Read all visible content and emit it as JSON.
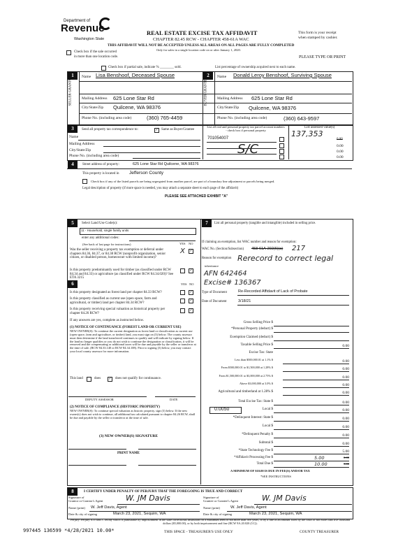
{
  "header": {
    "logo_dept": "Department of",
    "logo_name": "Revenue",
    "logo_state": "Washington State",
    "title": "REAL ESTATE EXCISE TAX AFFIDAVIT",
    "chapter": "CHAPTER 82.45 RCW - CHAPTER 458-61A WAC",
    "warning": "THIS AFFIDAVIT WILL NOT BE ACCEPTED UNLESS ALL AREAS ON ALL PAGES ARE FULLY COMPLETED",
    "only_for": "Only for sales in a single location code on or after January 1, 2020.",
    "receipt_1": "This form is your receipt",
    "receipt_2": "when stamped by cashier.",
    "type_or_print": "PLEASE TYPE OR PRINT",
    "multi_location_1": "Check box if the sale occurred",
    "multi_location_2": "in more than one location code.",
    "partial_sale": "Check box if partial sale, indicate % ________ sold.",
    "ownership_note": "List percentage of ownership acquired next to each name."
  },
  "seller": {
    "num": "1",
    "side": "SELLER GRANTOR",
    "name_label": "Name",
    "name": "Lisa Benshoof, Deceased Spouse",
    "mail_label": "Mailing Address",
    "mail": "625 Lone Star Rd",
    "city_label": "City/State/Zip",
    "city": "Quilcene, WA 98376",
    "phone_label": "Phone No. (including area code)",
    "phone": "(360) 765-4459"
  },
  "buyer": {
    "num": "2",
    "side": "BUYER GRANTEE",
    "name_label": "Name",
    "name": "Donald Leroy Benshoof, Surviving Spouse",
    "mail_label": "Mailing Address",
    "mail": "625 Lone Star Rd",
    "city_label": "City/State/Zip",
    "city": "Quilcene, WA 98376",
    "phone_label": "Phone No. (including area code)",
    "phone": "(360) 643-9597"
  },
  "section3": {
    "num": "3",
    "send_label": "Send all property tax correspondence to:",
    "same_label": "Same as Buyer/Grantee",
    "same_checked": true,
    "name_label": "Name",
    "mail_label": "Mailing Address",
    "city_label": "City/State/Zip",
    "phone_label": "Phone No. (including area code)",
    "parcel_header": "List all real and personal property tax parcel account numbers - check box if personal property",
    "value_header": "List assessed value(s)",
    "parcels": [
      "701054007",
      "",
      "",
      ""
    ],
    "parcel_handwritten": "S/C",
    "assessed_handwritten": "137,353",
    "values": [
      "0.00",
      "0.00",
      "0.00",
      "0.00"
    ]
  },
  "section4": {
    "num": "4",
    "street_label": "Street address of property:",
    "street": "625 Lone Star Rd Quilcene, WA 98376",
    "located_label": "This property is located in",
    "located": "Jefferson County",
    "segregated_label": "Check box if any of the listed parcels are being segregated from another parcel, are part of a boundary line adjustment or parcels being merged.",
    "legal_label": "Legal description of property (if more space is needed, you may attach a separate sheet to each page of the affidavit)",
    "legal": "PLEASE SEE ATTACHED EXHIBIT \"A\""
  },
  "section5": {
    "num": "5",
    "land_use_label": "Select Land Use Code(s):",
    "land_use": "11 - Household, single family units",
    "additional": "enter any additional codes:",
    "see_back": "(See back of last page for instructions)",
    "yes": "YES",
    "no": "NO",
    "q1": "Was the seller receiving a property tax exemption or deferral under chapters 84.36, 84.37, or 84.38 RCW (nonprofit organization, senior citizen, or disabled person, homeowner with limited income)?",
    "q2": "Is this property predominantly used for timber (as classified under RCW 84.34 and 84.33) or agriculture (as classified under RCW 84.34.020)? See ETA 3215"
  },
  "section6": {
    "num": "6",
    "yes": "YES",
    "no": "NO",
    "q1": "Is this property designated as forest land per chapter 84.33 RCW?",
    "q2": "Is this property classified as current use (open space, farm and agricultural, or timber) land per chapter 84.34 RCW?",
    "q3": "Is this property receiving special valuation as historical property per chapter 84.26 RCW?",
    "if_yes": "If any answers are yes, complete as instructed below.",
    "notice1_title": "(1) NOTICE OF CONTINUANCE (FOREST LAND OR CURRENT USE)",
    "notice1_body": "NEW OWNER(S): To continue the current designation as forest land or classification as current use (open space, farm and agriculture, or timber) land, you must sign on (3) below. The county assessor must then determine if the land transferred continues to qualify and will indicate by signing below. If the land no longer qualifies or you do not wish to continue the designation or classification, it will be removed and the compensating or additional taxes will be due and payable by the seller or transferor at the time of sale. (RCW 84.33.140 or RCW 84.34.108). Prior to signing (3) below, you may contact your local county assessor for more information.",
    "this_land": "This land",
    "does": "does",
    "does_not": "does not qualify for continuance.",
    "deputy": "DEPUTY ASSESSOR",
    "date": "DATE",
    "notice2_title": "(2) NOTICE OF COMPLIANCE (HISTORIC PROPERTY)",
    "notice2_body": "NEW OWNER(S): To continue special valuation as historic property, sign (3) below. If the new owner(s) does not wish to continue, all additional tax calculated pursuant to chapter 84.26 RCW, shall be due and payable by the seller or transferor at the time of sale.",
    "new_owner_sig": "(3) NEW OWNER(S) SIGNATURE",
    "print_name": "PRINT NAME"
  },
  "section7": {
    "num": "7",
    "personal_label": "List all personal property (tangible and intangible) included in selling price.",
    "exemption_intro": "If claiming an exemption, list WAC number and reason for exemption:",
    "wac_label": "WAC No. (Section/Subsection)",
    "wac": "458-61A-202(6)(a)",
    "wac_handwritten": "217",
    "reason_label": "Reason for exemption",
    "reason_typed": "inheritance",
    "reason_handwritten": "Rerecord to correct legal",
    "afn_handwritten": "AFN 642464",
    "excise_handwritten": "Excise# 136367",
    "doc_type_label": "Type of Document",
    "doc_type": "Re-Recorded Affidavit of Lack of Probate",
    "doc_date_label": "Date of Document",
    "doc_date": "3/18/21",
    "local_rate": "0.0050",
    "fin": [
      {
        "label": "Gross Selling Price  $",
        "value": ""
      },
      {
        "label": "*Personal Property (deduct)  $",
        "value": ""
      },
      {
        "label": "Exemption Claimed (deduct)  $",
        "value": ""
      },
      {
        "label": "Taxable Selling Price  $",
        "value": "0.00"
      },
      {
        "label": "Excise Tax: State",
        "value": null
      },
      {
        "label": "Less than $500,000.01 at 1.1%  $",
        "value": "0.00"
      },
      {
        "label": "From $500,000.01 to $1,500,000 at 1.28%  $",
        "value": "0.00"
      },
      {
        "label": "From $1,500,000.01 to $3,000,000 at 2.75%  $",
        "value": "0.00"
      },
      {
        "label": "Above $3,000,000 at 3.0%  $",
        "value": "0.00"
      },
      {
        "label": "Agricultural and timberland at 1.28%  $",
        "value": "0.00"
      },
      {
        "label": "Total Excise Tax: State  $",
        "value": "0.00"
      },
      {
        "label": "Local  $",
        "value": "0.00"
      },
      {
        "label": "*Delinquent Interest: State  $",
        "value": "0.00"
      },
      {
        "label": "Local  $",
        "value": "0.00"
      },
      {
        "label": "*Delinquent Penalty  $",
        "value": "0.00"
      },
      {
        "label": "Subtotal  $",
        "value": "0.00"
      },
      {
        "label": "*State Technology Fee  $",
        "value": "5.00"
      },
      {
        "label": "*Affidavit Processing Fee  $",
        "value": "0.00",
        "handwritten": "5.00"
      },
      {
        "label": "Total Due  $",
        "value": "5.00",
        "handwritten": "10.00"
      }
    ],
    "minimum": "A MINIMUM OF $10.00 IS DUE IN FEE(S) AND/OR TAX",
    "see_instructions": "*SEE INSTRUCTIONS"
  },
  "section8": {
    "num": "8",
    "certify": "I CERTIFY UNDER PENALTY OF PERJURY THAT THE FOREGOING IS TRUE AND CORRECT",
    "grantor_sig_label_1": "Signature of",
    "grantor_sig_label_2": "Grantor or Grantor's Agent",
    "grantor_sig": "W. JM Davis",
    "grantee_sig_label_1": "Signature of",
    "grantee_sig_label_2": "Grantee or Grantee's Agent",
    "grantee_sig": "W. JM Davis",
    "name_label": "Name (print)",
    "grantor_name": "W. Jeff Davis, Agent",
    "grantee_name": "W. Jeff Davis, Agent",
    "date_label": "Date & city of signing",
    "grantor_date": "March 23, 2021, Sequim, WA",
    "grantee_date": "March 23, 2021, Sequim, WA",
    "perjury": "Perjury: Perjury is a class C felony which is punishable by imprisonment in the state correctional institution for a maximum term of not more than five years, or by a fine in an amount fixed by the court of not more than five thousand dollars ($5,000.00), or by both imprisonment and fine (RCW 9A.20.020 (1C))."
  },
  "footer": {
    "stamp": "997445 136599 *4/28/2021 10.00*",
    "treasurer_space": "THIS SPACE - TREASURER'S USE ONLY",
    "county_treasurer": "COUNTY TREASURER"
  }
}
